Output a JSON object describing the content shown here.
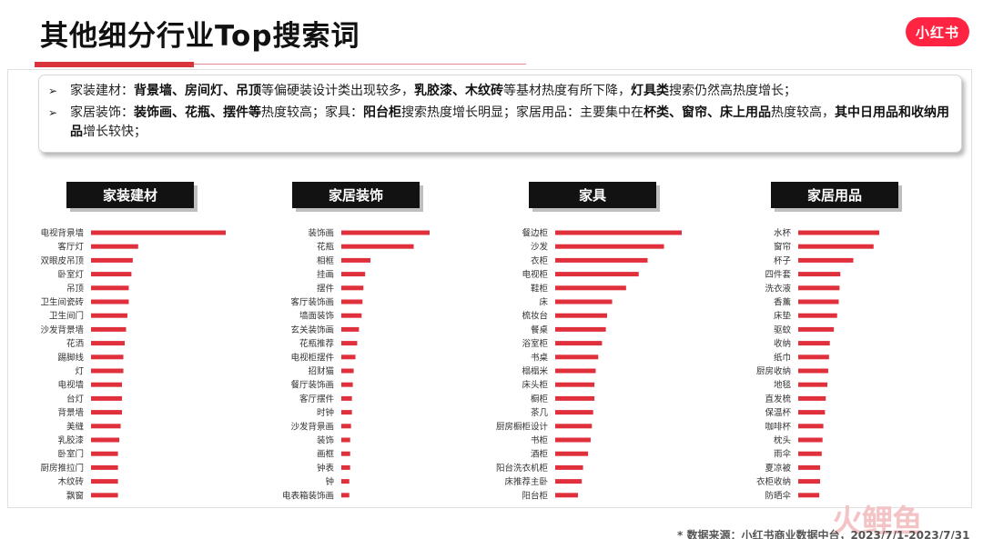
{
  "title": "其他细分行业Top搜索词",
  "logo": "小红书",
  "summary": {
    "lines": [
      [
        {
          "t": "家装建材：",
          "b": false
        },
        {
          "t": "背景墙、房间灯、吊顶",
          "b": true
        },
        {
          "t": "等偏硬装设计类出现较多，",
          "b": false
        },
        {
          "t": "乳胶漆、木纹砖",
          "b": true
        },
        {
          "t": "等基材热度有所下降，",
          "b": false
        },
        {
          "t": "灯具类",
          "b": true
        },
        {
          "t": "搜索仍然高热度增长；",
          "b": false
        }
      ],
      [
        {
          "t": "家居装饰：",
          "b": false
        },
        {
          "t": "装饰画、花瓶、摆件等",
          "b": true
        },
        {
          "t": "热度较高；家具：",
          "b": false
        },
        {
          "t": "阳台柜",
          "b": true
        },
        {
          "t": "搜索热度增长明显；家居用品：主要集中在",
          "b": false
        },
        {
          "t": "杯类、窗帘、床上用品",
          "b": true
        },
        {
          "t": "热度较高，",
          "b": false
        },
        {
          "t": "其中日用品和收纳用品",
          "b": true
        },
        {
          "t": "增长较快；",
          "b": false
        }
      ]
    ]
  },
  "bar_color": "#e0303c",
  "chart_data": [
    {
      "type": "bar",
      "title": "家装建材",
      "categories": [
        "电视背景墙",
        "客厅灯",
        "双眼皮吊顶",
        "卧室灯",
        "吊顶",
        "卫生间瓷砖",
        "卫生间门",
        "沙发背景墙",
        "花洒",
        "踢脚线",
        "灯",
        "电视墙",
        "台灯",
        "背景墙",
        "美缝",
        "乳胶漆",
        "卧室门",
        "厨房推拉门",
        "木纹砖",
        "飘窗"
      ],
      "values": [
        100,
        35,
        31,
        30,
        28,
        28,
        27,
        26,
        25,
        24,
        24,
        23,
        23,
        23,
        22,
        21,
        20,
        20,
        20,
        20
      ]
    },
    {
      "type": "bar",
      "title": "家居装饰",
      "categories": [
        "装饰画",
        "花瓶",
        "相框",
        "挂画",
        "摆件",
        "客厅装饰画",
        "墙面装饰",
        "玄关装饰画",
        "花瓶推荐",
        "电视柜摆件",
        "招财猫",
        "餐厅装饰画",
        "客厅摆件",
        "时钟",
        "沙发背景画",
        "装饰",
        "画框",
        "钟表",
        "钟",
        "电表箱装饰画"
      ],
      "values": [
        100,
        82,
        33,
        27,
        25,
        24,
        23,
        20,
        18,
        16,
        14,
        13,
        12,
        12,
        11,
        10,
        10,
        10,
        9,
        9
      ]
    },
    {
      "type": "bar",
      "title": "家具",
      "categories": [
        "餐边柜",
        "沙发",
        "衣柜",
        "电视柜",
        "鞋柜",
        "床",
        "梳妆台",
        "餐桌",
        "浴室柜",
        "书桌",
        "榻榻米",
        "床头柜",
        "橱柜",
        "茶几",
        "厨房橱柜设计",
        "书柜",
        "酒柜",
        "阳台洗衣机柜",
        "床推荐主卧",
        "阳台柜"
      ],
      "values": [
        100,
        86,
        73,
        66,
        56,
        45,
        41,
        40,
        37,
        34,
        32,
        31,
        31,
        30,
        29,
        28,
        26,
        22,
        21,
        18
      ]
    },
    {
      "type": "bar",
      "title": "家居用品",
      "categories": [
        "水杯",
        "窗帘",
        "杯子",
        "四件套",
        "洗衣液",
        "香薰",
        "床垫",
        "驱蚊",
        "收纳",
        "纸巾",
        "厨房收纳",
        "地毯",
        "直发梳",
        "保温杯",
        "咖啡杯",
        "枕头",
        "雨伞",
        "夏凉被",
        "衣柜收纳",
        "防晒伞"
      ],
      "values": [
        100,
        93,
        68,
        52,
        51,
        50,
        48,
        44,
        39,
        38,
        37,
        36,
        34,
        33,
        31,
        30,
        29,
        27,
        27,
        26
      ]
    }
  ],
  "source": "* 数据来源：小红书商业数据中台，2023/7/1-2023/7/31",
  "watermark": "火鲤鱼"
}
